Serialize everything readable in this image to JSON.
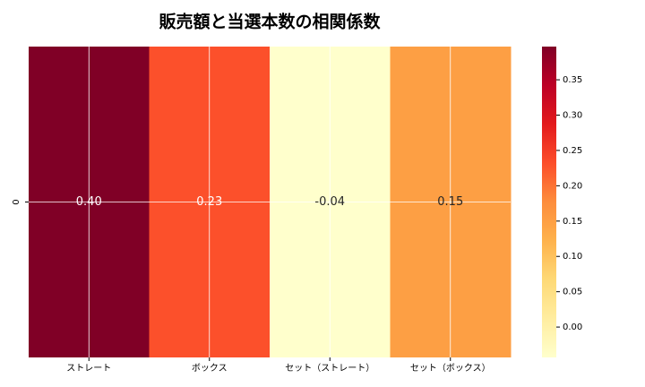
{
  "chart_data": {
    "type": "heatmap",
    "title": "販売額と当選本数の相関係数",
    "rows": [
      "0"
    ],
    "categories": [
      "ストレート",
      "ボックス",
      "セット（ストレート）",
      "セット（ボックス）"
    ],
    "values": [
      [
        0.397,
        0.23,
        -0.043,
        0.15
      ]
    ],
    "value_labels": [
      [
        "0.40",
        "0.23",
        "-0.04",
        "0.15"
      ]
    ],
    "colormap": "YlOrRd",
    "clim": [
      -0.043,
      0.397
    ],
    "cticks": [
      {
        "value": 0,
        "label": "0.00"
      },
      {
        "value": 0.05,
        "label": "0.05"
      },
      {
        "value": 0.1,
        "label": "0.10"
      },
      {
        "value": 0.15,
        "label": "0.15"
      },
      {
        "value": 0.2,
        "label": "0.20"
      },
      {
        "value": 0.25,
        "label": "0.25"
      },
      {
        "value": 0.3,
        "label": "0.30"
      },
      {
        "value": 0.35,
        "label": "0.35"
      }
    ],
    "grid": true
  }
}
